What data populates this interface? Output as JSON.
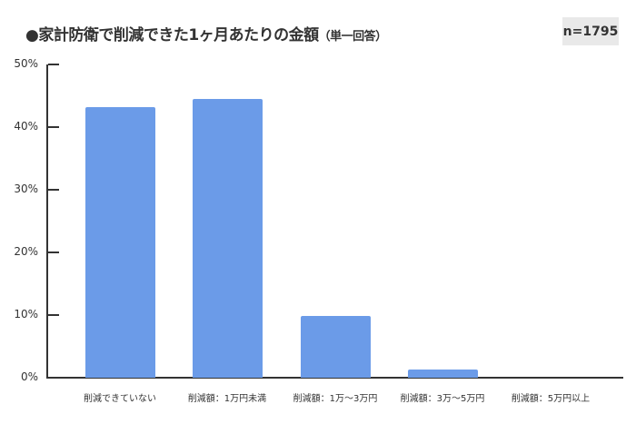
{
  "header": {
    "title": "●家計防衛で削減できた1ヶ月あたりの金額",
    "subtitle": "（単一回答）",
    "sample_size": "n=1795"
  },
  "y_ticks": [
    "50%",
    "40%",
    "30%",
    "20%",
    "10%",
    "0%"
  ],
  "x_labels": [
    "削減できていない",
    "削減額：1万円未満",
    "削減額：1万～3万円",
    "削減額：3万～5万円",
    "削減額：5万円以上"
  ],
  "colors": {
    "bar": "#6b9be8",
    "axis": "#333333",
    "badge_bg": "#e9e9e9"
  },
  "chart_data": {
    "type": "bar",
    "title": "●家計防衛で削減できた1ヶ月あたりの金額（単一回答）",
    "annotation": "n=1795",
    "categories": [
      "削減できていない",
      "削減額：1万円未満",
      "削減額：1万～3万円",
      "削減額：3万～5万円",
      "削減額：5万円以上"
    ],
    "values": [
      43.2,
      44.5,
      9.9,
      1.3,
      0.0
    ],
    "unit": "%",
    "xlabel": "",
    "ylabel": "",
    "ylim": [
      0,
      50
    ],
    "yticks": [
      0,
      10,
      20,
      30,
      40,
      50
    ],
    "grid": false,
    "legend": null
  }
}
